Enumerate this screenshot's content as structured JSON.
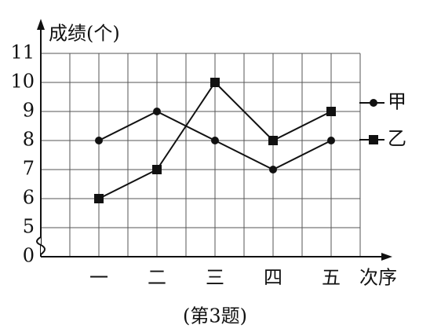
{
  "chart_data": {
    "type": "line",
    "y_label": "成绩(个)",
    "x_label": "次序",
    "caption": "(第3题)",
    "categories": [
      "一",
      "二",
      "三",
      "四",
      "五"
    ],
    "series": [
      {
        "name": "甲",
        "color": "#111111",
        "marker": "circle",
        "values": [
          8,
          9,
          8,
          7,
          8
        ]
      },
      {
        "name": "乙",
        "color": "#111111",
        "marker": "square",
        "values": [
          6,
          7,
          10,
          8,
          9
        ]
      }
    ],
    "ylim": [
      0,
      11
    ],
    "y_break": [
      0,
      5
    ],
    "yticks": [
      0,
      5,
      6,
      7,
      8,
      9,
      10,
      11
    ],
    "grid": true
  }
}
